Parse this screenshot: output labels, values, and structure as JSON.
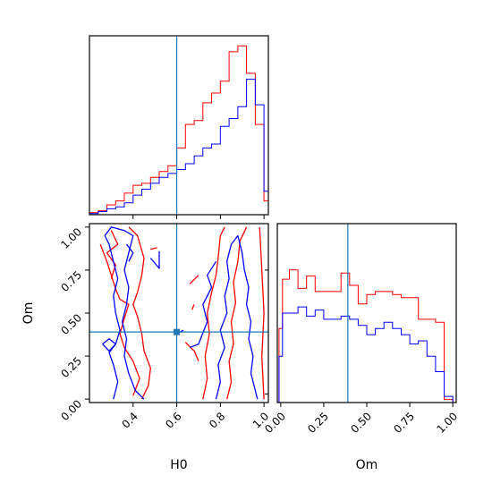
{
  "chart_data": {
    "type": "corner",
    "parameters": [
      "H0",
      "Om"
    ],
    "truth": {
      "H0": 0.6,
      "Om": 0.39
    },
    "colors": {
      "red": "#ff0000",
      "blue": "#0000ff",
      "truth": "#1f77b4"
    },
    "h0_hist": {
      "xlim": [
        0.2,
        1.02
      ],
      "red": {
        "edges": [
          0.2,
          0.24,
          0.28,
          0.32,
          0.36,
          0.4,
          0.44,
          0.48,
          0.52,
          0.56,
          0.6,
          0.64,
          0.68,
          0.72,
          0.76,
          0.8,
          0.84,
          0.88,
          0.92,
          0.96,
          1.0,
          1.02
        ],
        "counts": [
          0.5,
          1.0,
          2.5,
          3.5,
          5.5,
          7.5,
          8.0,
          9.5,
          11.0,
          12.5,
          17.0,
          23.0,
          24.0,
          28.5,
          31.0,
          34.0,
          41.5,
          43.0,
          36.0,
          23.0,
          3.5
        ]
      },
      "blue": {
        "edges": [
          0.2,
          0.24,
          0.28,
          0.32,
          0.36,
          0.4,
          0.44,
          0.48,
          0.52,
          0.56,
          0.6,
          0.64,
          0.68,
          0.72,
          0.76,
          0.8,
          0.84,
          0.88,
          0.92,
          0.96,
          1.0,
          1.02
        ],
        "counts": [
          0.3,
          0.8,
          1.5,
          2.0,
          3.0,
          5.0,
          6.5,
          8.0,
          9.5,
          10.5,
          11.5,
          13.0,
          15.0,
          17.0,
          18.0,
          22.5,
          24.5,
          27.5,
          34.5,
          28.0,
          6.0
        ]
      }
    },
    "h0_ticks": [
      0.4,
      0.6,
      0.8,
      1.0
    ],
    "h0_tick_labels": [
      "0.4",
      "0.6",
      "0.8",
      "1.0"
    ],
    "om_ticks": [
      0.0,
      0.25,
      0.5,
      0.75,
      1.0
    ],
    "om_tick_labels": [
      "0.00",
      "0.25",
      "0.50",
      "0.75",
      "1.00"
    ],
    "om_hist": {
      "xlim": [
        -0.02,
        1.02
      ],
      "red": {
        "edges": [
          -0.01,
          0.01,
          0.05,
          0.1,
          0.15,
          0.2,
          0.25,
          0.3,
          0.35,
          0.4,
          0.45,
          0.5,
          0.55,
          0.6,
          0.65,
          0.7,
          0.75,
          0.8,
          0.85,
          0.9,
          0.95,
          1.0
        ],
        "counts": [
          12.0,
          20.0,
          21.5,
          18.5,
          20.5,
          18.0,
          18.0,
          18.0,
          21.0,
          19.0,
          16.0,
          17.5,
          18.0,
          18.0,
          17.5,
          17.0,
          17.0,
          13.5,
          13.5,
          13.0,
          0.5
        ]
      },
      "blue": {
        "edges": [
          -0.01,
          0.01,
          0.05,
          0.1,
          0.15,
          0.2,
          0.25,
          0.3,
          0.35,
          0.4,
          0.45,
          0.5,
          0.55,
          0.6,
          0.65,
          0.7,
          0.75,
          0.8,
          0.85,
          0.9,
          0.95,
          1.0
        ],
        "counts": [
          7.5,
          14.5,
          14.5,
          15.5,
          14.0,
          15.0,
          13.5,
          13.5,
          14.0,
          13.5,
          12.5,
          11.0,
          12.0,
          13.0,
          12.0,
          11.0,
          9.5,
          10.0,
          7.5,
          5.0,
          1.0
        ]
      }
    },
    "scatter_2d": {
      "xlim": [
        0.2,
        1.02
      ],
      "ylim": [
        -0.02,
        1.02
      ],
      "red_contours": [
        [
          [
            0.25,
            0.9
          ],
          [
            0.28,
            0.8
          ],
          [
            0.3,
            0.72
          ],
          [
            0.32,
            0.64
          ],
          [
            0.34,
            0.58
          ],
          [
            0.38,
            0.55
          ],
          [
            0.36,
            0.47
          ],
          [
            0.34,
            0.38
          ],
          [
            0.36,
            0.3
          ],
          [
            0.4,
            0.22
          ],
          [
            0.43,
            0.12
          ],
          [
            0.4,
            0.02
          ]
        ],
        [
          [
            0.38,
            1.0
          ],
          [
            0.42,
            0.95
          ],
          [
            0.45,
            0.82
          ],
          [
            0.44,
            0.72
          ],
          [
            0.42,
            0.62
          ],
          [
            0.4,
            0.55
          ],
          [
            0.42,
            0.48
          ],
          [
            0.44,
            0.38
          ],
          [
            0.45,
            0.28
          ],
          [
            0.48,
            0.18
          ],
          [
            0.47,
            0.08
          ],
          [
            0.44,
            0.0
          ]
        ],
        [
          [
            0.3,
            0.98
          ],
          [
            0.33,
            0.9
          ],
          [
            0.28,
            0.85
          ],
          [
            0.32,
            0.78
          ],
          [
            0.3,
            0.7
          ]
        ],
        [
          [
            0.48,
            0.87
          ],
          [
            0.51,
            0.88
          ]
        ],
        [
          [
            0.72,
            0.0
          ],
          [
            0.74,
            0.12
          ],
          [
            0.73,
            0.25
          ],
          [
            0.75,
            0.38
          ],
          [
            0.74,
            0.5
          ],
          [
            0.76,
            0.62
          ],
          [
            0.78,
            0.72
          ],
          [
            0.79,
            0.82
          ],
          [
            0.8,
            0.95
          ],
          [
            0.82,
            1.0
          ]
        ],
        [
          [
            0.83,
            0.0
          ],
          [
            0.85,
            0.1
          ],
          [
            0.84,
            0.22
          ],
          [
            0.86,
            0.32
          ],
          [
            0.85,
            0.45
          ],
          [
            0.87,
            0.56
          ],
          [
            0.86,
            0.68
          ],
          [
            0.88,
            0.8
          ],
          [
            0.89,
            0.92
          ],
          [
            0.92,
            1.0
          ]
        ],
        [
          [
            0.66,
            0.67
          ],
          [
            0.7,
            0.72
          ]
        ],
        [
          [
            0.67,
            0.52
          ],
          [
            0.68,
            0.55
          ]
        ],
        [
          [
            0.64,
            0.33
          ],
          [
            0.68,
            0.28
          ],
          [
            0.7,
            0.22
          ]
        ],
        [
          [
            0.98,
            1.0
          ],
          [
            0.99,
            0.75
          ],
          [
            1.0,
            0.5
          ],
          [
            0.99,
            0.25
          ],
          [
            1.0,
            0.0
          ]
        ]
      ],
      "blue_contours": [
        [
          [
            0.27,
            0.95
          ],
          [
            0.3,
            1.0
          ],
          [
            0.36,
            0.98
          ],
          [
            0.4,
            0.95
          ],
          [
            0.38,
            0.85
          ],
          [
            0.36,
            0.75
          ],
          [
            0.38,
            0.65
          ],
          [
            0.37,
            0.55
          ],
          [
            0.35,
            0.45
          ],
          [
            0.37,
            0.35
          ],
          [
            0.36,
            0.25
          ],
          [
            0.38,
            0.15
          ],
          [
            0.41,
            0.05
          ],
          [
            0.45,
            0.0
          ]
        ],
        [
          [
            0.31,
            0.0
          ],
          [
            0.33,
            0.1
          ],
          [
            0.31,
            0.2
          ],
          [
            0.29,
            0.27
          ],
          [
            0.32,
            0.32
          ],
          [
            0.34,
            0.4
          ],
          [
            0.32,
            0.5
          ],
          [
            0.31,
            0.6
          ],
          [
            0.33,
            0.7
          ],
          [
            0.31,
            0.8
          ],
          [
            0.29,
            0.9
          ],
          [
            0.27,
            0.95
          ]
        ],
        [
          [
            0.26,
            0.32
          ],
          [
            0.29,
            0.35
          ],
          [
            0.32,
            0.32
          ],
          [
            0.29,
            0.28
          ],
          [
            0.26,
            0.32
          ]
        ],
        [
          [
            0.48,
            0.82
          ],
          [
            0.52,
            0.76
          ],
          [
            0.52,
            0.86
          ]
        ],
        [
          [
            0.37,
            0.9
          ],
          [
            0.4,
            0.85
          ],
          [
            0.38,
            0.8
          ]
        ],
        [
          [
            0.6,
            0.38
          ],
          [
            0.63,
            0.4
          ]
        ],
        [
          [
            0.66,
            0.3
          ],
          [
            0.7,
            0.32
          ],
          [
            0.74,
            0.45
          ],
          [
            0.72,
            0.55
          ],
          [
            0.76,
            0.65
          ],
          [
            0.74,
            0.72
          ],
          [
            0.78,
            0.8
          ]
        ],
        [
          [
            0.78,
            0.0
          ],
          [
            0.8,
            0.1
          ],
          [
            0.79,
            0.2
          ],
          [
            0.82,
            0.3
          ],
          [
            0.8,
            0.4
          ],
          [
            0.83,
            0.5
          ],
          [
            0.82,
            0.6
          ],
          [
            0.84,
            0.7
          ],
          [
            0.83,
            0.8
          ],
          [
            0.85,
            0.9
          ],
          [
            0.88,
            0.95
          ],
          [
            0.9,
            0.85
          ],
          [
            0.91,
            0.75
          ],
          [
            0.93,
            0.65
          ],
          [
            0.92,
            0.55
          ],
          [
            0.94,
            0.45
          ],
          [
            0.93,
            0.35
          ],
          [
            0.95,
            0.25
          ],
          [
            0.94,
            0.15
          ],
          [
            0.96,
            0.05
          ],
          [
            0.97,
            0.0
          ]
        ]
      ]
    }
  },
  "labels": {
    "x_h0": "H0",
    "x_om": "Om",
    "y_om": "Om"
  }
}
